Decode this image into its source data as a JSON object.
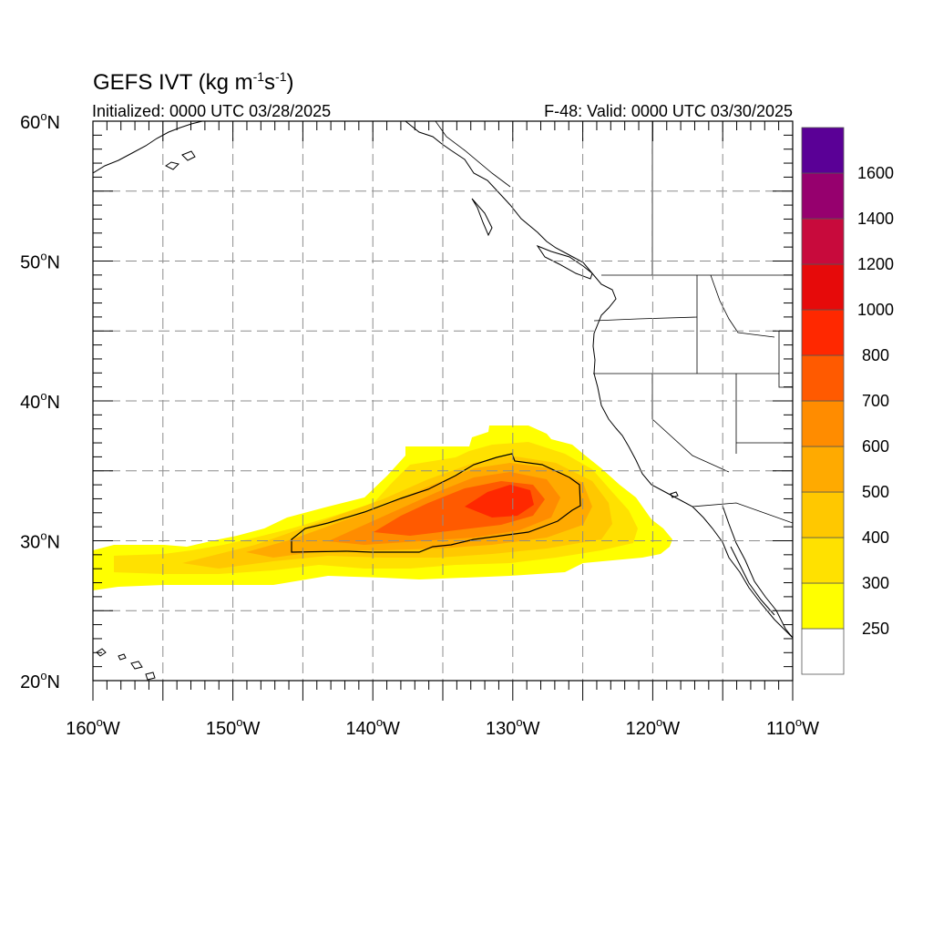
{
  "title": {
    "prefix": "GEFS IVT (kg m",
    "exp1": "-1",
    "mid": "s",
    "exp2": "-1",
    "suffix": ")"
  },
  "subtitle_left": "Initialized: 0000 UTC 03/28/2025",
  "subtitle_right": "F-48: Valid: 0000 UTC 03/30/2025",
  "lat_ticks": [
    "20",
    "30",
    "40",
    "50",
    "60"
  ],
  "lat_suffix": "N",
  "lon_ticks": [
    "160",
    "150",
    "140",
    "130",
    "120",
    "110"
  ],
  "lon_suffix": "W",
  "degree_symbol": "o",
  "colorbar": {
    "labels": [
      "250",
      "300",
      "400",
      "500",
      "600",
      "700",
      "800",
      "1000",
      "1200",
      "1400",
      "1600"
    ],
    "colors": [
      "#ffffff",
      "#ffff00",
      "#ffe100",
      "#ffc800",
      "#ffaa00",
      "#ff8c00",
      "#ff5a00",
      "#ff2800",
      "#e60a0a",
      "#c80a3c",
      "#96006e",
      "#5a0096"
    ]
  },
  "map": {
    "lon_range": [
      -160,
      -110
    ],
    "lat_range": [
      20,
      60
    ],
    "grid_interval_deg": 5,
    "contour_level": 500
  }
}
